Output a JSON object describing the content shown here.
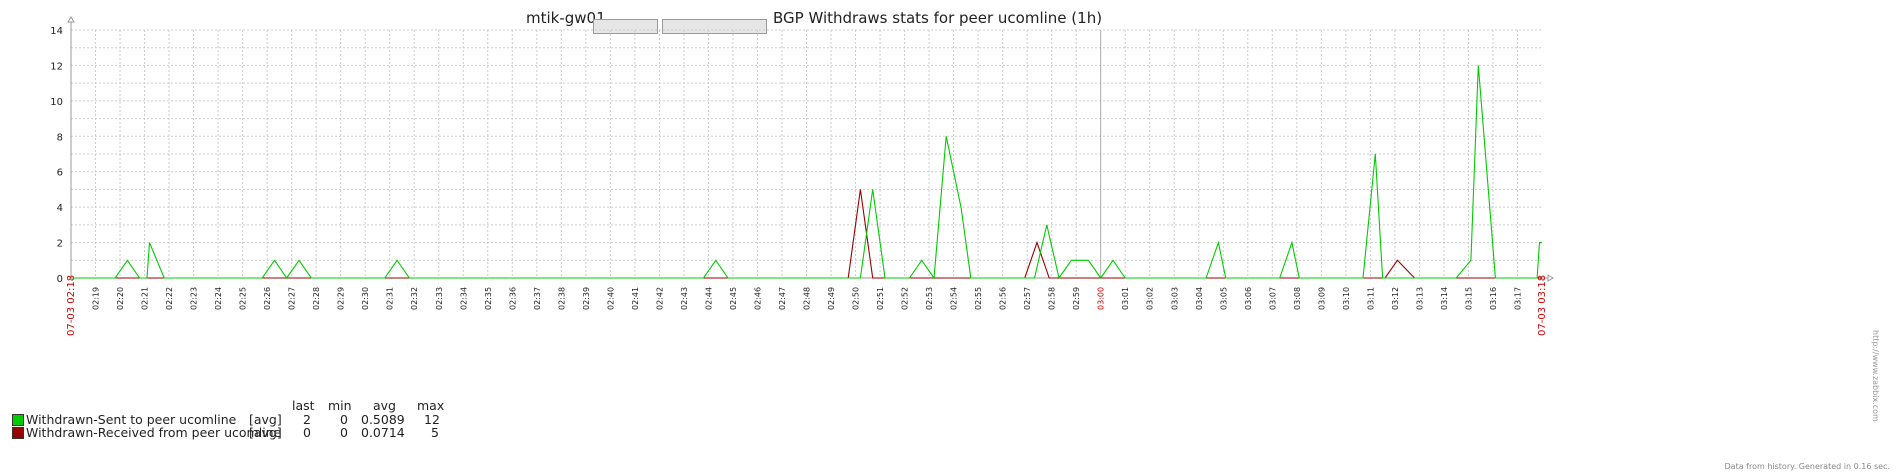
{
  "title": {
    "host_prefix": "mtik-gw01.",
    "text": "BGP Withdraws stats for peer ucomline (1h)"
  },
  "colors": {
    "sent": "#00cc00",
    "received": "#990000",
    "grid": "#cccccc",
    "axis": "#999999",
    "highlight_label": "#cc0000"
  },
  "legend": {
    "headers": {
      "last": "last",
      "min": "min",
      "avg": "avg",
      "max": "max"
    },
    "rows": [
      {
        "name": "Withdrawn-Sent to peer ucomline",
        "func": "[avg]",
        "last": "2",
        "min": "0",
        "avg": "0.5089",
        "max": "12"
      },
      {
        "name": "Withdrawn-Received from peer ucomline",
        "func": "[avg]",
        "last": "0",
        "min": "0",
        "avg": "0.0714",
        "max": "5"
      }
    ]
  },
  "footer": "Data from history. Generated in 0.16 sec.",
  "watermark": "http://www.zabbix.com",
  "chart_data": {
    "type": "line",
    "ylim": [
      0,
      14
    ],
    "yticks": [
      "0",
      "2",
      "4",
      "6",
      "8",
      "10",
      "12",
      "14"
    ],
    "x_start_label": "07-03 02:18",
    "x_end_label": "07-03 03:18",
    "x_tick_labels": [
      "02:19",
      "02:20",
      "02:21",
      "02:22",
      "02:23",
      "02:24",
      "02:25",
      "02:26",
      "02:27",
      "02:28",
      "02:29",
      "02:30",
      "02:31",
      "02:32",
      "02:33",
      "02:34",
      "02:35",
      "02:36",
      "02:37",
      "02:38",
      "02:39",
      "02:40",
      "02:41",
      "02:42",
      "02:43",
      "02:44",
      "02:45",
      "02:46",
      "02:47",
      "02:48",
      "02:49",
      "02:50",
      "02:51",
      "02:52",
      "02:53",
      "02:54",
      "02:55",
      "02:56",
      "02:57",
      "02:58",
      "02:59",
      "03:00",
      "03:01",
      "03:02",
      "03:03",
      "03:04",
      "03:05",
      "03:06",
      "03:07",
      "03:08",
      "03:09",
      "03:10",
      "03:11",
      "03:12",
      "03:13",
      "03:14",
      "03:15",
      "03:16",
      "03:17"
    ],
    "highlight_ticks": [
      "03:00"
    ],
    "x_minutes_range": [
      0,
      60
    ],
    "series": [
      {
        "name": "Withdrawn-Sent to peer ucomline",
        "color": "#00cc00",
        "points": [
          [
            0,
            0
          ],
          [
            1.8,
            0
          ],
          [
            2.3,
            1
          ],
          [
            2.8,
            0
          ],
          [
            3.1,
            0
          ],
          [
            3.2,
            2
          ],
          [
            3.8,
            0
          ],
          [
            7.8,
            0
          ],
          [
            8.3,
            1
          ],
          [
            8.8,
            0
          ],
          [
            9.3,
            1
          ],
          [
            9.8,
            0
          ],
          [
            12.8,
            0
          ],
          [
            13.3,
            1
          ],
          [
            13.8,
            0
          ],
          [
            25.8,
            0
          ],
          [
            26.3,
            1
          ],
          [
            26.8,
            0
          ],
          [
            32.2,
            0
          ],
          [
            32.7,
            5
          ],
          [
            33.2,
            0
          ],
          [
            34.2,
            0
          ],
          [
            34.7,
            1
          ],
          [
            35.2,
            0
          ],
          [
            35.7,
            8
          ],
          [
            36.3,
            4
          ],
          [
            36.7,
            0
          ],
          [
            39.3,
            0
          ],
          [
            39.8,
            3
          ],
          [
            40.3,
            0
          ],
          [
            40.8,
            1
          ],
          [
            41.5,
            1
          ],
          [
            42,
            0
          ],
          [
            42.5,
            1
          ],
          [
            43,
            0
          ],
          [
            46.3,
            0
          ],
          [
            46.8,
            2
          ],
          [
            47.1,
            0
          ],
          [
            49.3,
            0
          ],
          [
            49.8,
            2
          ],
          [
            50.1,
            0
          ],
          [
            52.7,
            0
          ],
          [
            53.2,
            7
          ],
          [
            53.5,
            0
          ],
          [
            56.5,
            0
          ],
          [
            57.1,
            1
          ],
          [
            57.4,
            12
          ],
          [
            58.1,
            0
          ],
          [
            59.8,
            0
          ],
          [
            59.9,
            2
          ],
          [
            60,
            2
          ]
        ]
      },
      {
        "name": "Withdrawn-Received from peer ucomline",
        "color": "#990000",
        "points": [
          [
            0,
            0
          ],
          [
            31.7,
            0
          ],
          [
            32.2,
            5
          ],
          [
            32.7,
            0
          ],
          [
            38.9,
            0
          ],
          [
            39.4,
            2
          ],
          [
            39.9,
            0
          ],
          [
            53.6,
            0
          ],
          [
            54.1,
            1
          ],
          [
            54.8,
            0
          ],
          [
            60,
            0
          ]
        ]
      }
    ]
  }
}
